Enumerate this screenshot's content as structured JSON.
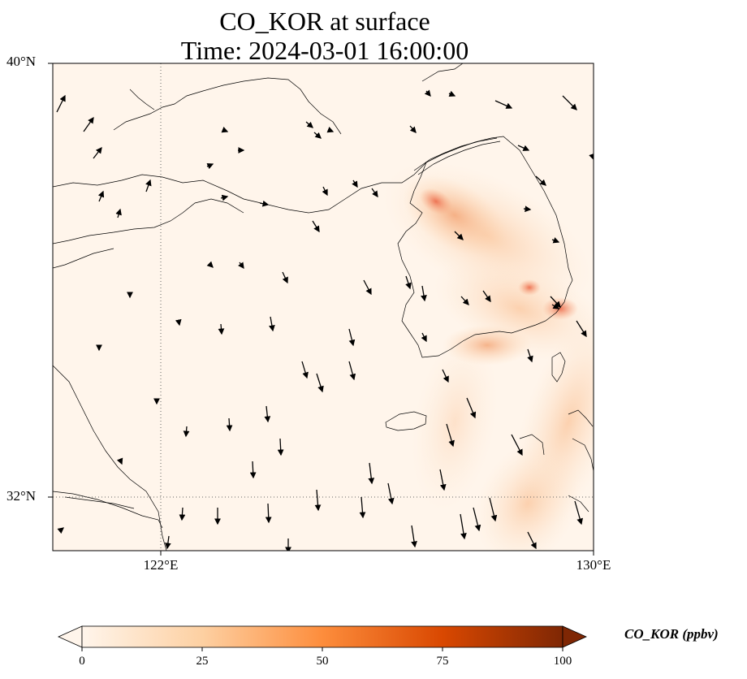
{
  "title": {
    "line1": "CO_KOR at surface",
    "line2": "Time: 2024-03-01 16:00:00"
  },
  "axes": {
    "lat_labels": [
      "40°N",
      "32°N"
    ],
    "lon_labels": [
      "122°E",
      "130°E"
    ],
    "gridlines": "dotted"
  },
  "colorbar": {
    "label": "CO_KOR (ppbv)",
    "ticks": [
      "0",
      "25",
      "50",
      "75",
      "100"
    ],
    "extend": "both",
    "colormap": [
      "#fff5eb",
      "#fdd0a2",
      "#fd8d3c",
      "#d94801",
      "#7f2704"
    ]
  },
  "map": {
    "background_color": "#fff5eb",
    "coastline_color": "#000000",
    "wind_vector_color": "#000000"
  }
}
